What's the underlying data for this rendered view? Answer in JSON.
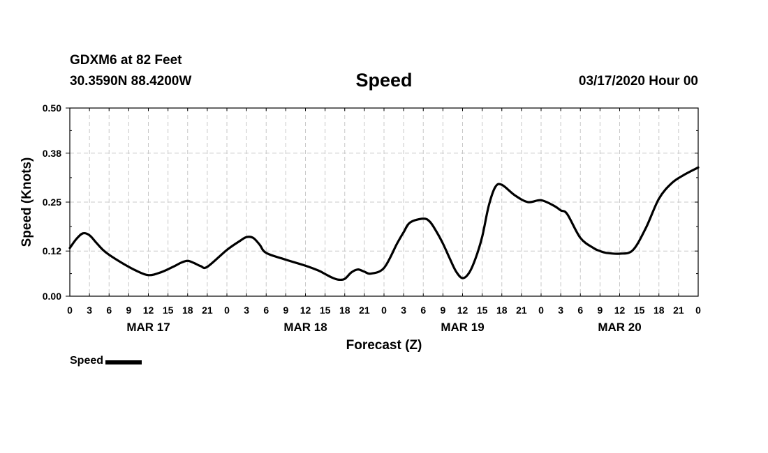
{
  "header": {
    "station": "GDXM6 at 82 Feet",
    "coords": "30.3590N 88.4200W",
    "title": "Speed",
    "datetime": "03/17/2020 Hour 00"
  },
  "chart_data": {
    "type": "line",
    "title": "Speed",
    "xlabel": "Forecast (Z)",
    "ylabel": "Speed (Knots)",
    "xlim": [
      0,
      96
    ],
    "ylim": [
      0,
      0.5
    ],
    "grid": true,
    "yticks": [
      0.0,
      0.12,
      0.25,
      0.38,
      0.5
    ],
    "ytick_labels": [
      "0.00",
      "0.12",
      "0.25",
      "0.38",
      "0.50"
    ],
    "xtick_labels": [
      "0",
      "3",
      "6",
      "9",
      "12",
      "15",
      "18",
      "21",
      "0",
      "3",
      "6",
      "9",
      "12",
      "15",
      "18",
      "21",
      "0",
      "3",
      "6",
      "9",
      "12",
      "15",
      "18",
      "21",
      "0",
      "3",
      "6",
      "9",
      "12",
      "15",
      "18",
      "21",
      "0"
    ],
    "date_labels": [
      {
        "label": "MAR 17",
        "hour": 12
      },
      {
        "label": "MAR 18",
        "hour": 36
      },
      {
        "label": "MAR 19",
        "hour": 60
      },
      {
        "label": "MAR 20",
        "hour": 84
      }
    ],
    "series": [
      {
        "name": "Speed",
        "color": "#000000",
        "x": [
          0,
          1,
          2,
          3,
          4,
          5,
          6,
          8,
          10,
          12,
          14,
          16,
          17,
          18,
          19,
          20,
          21,
          24,
          26,
          27,
          28,
          29,
          30,
          33,
          36,
          38,
          39,
          40,
          41,
          42,
          43,
          44,
          45,
          46,
          48,
          50,
          51,
          52,
          54,
          55,
          56,
          57,
          58,
          59,
          60,
          61,
          62,
          63,
          64,
          65,
          66,
          68,
          70,
          72,
          74,
          75,
          76,
          78,
          80,
          81,
          82,
          84,
          86,
          88,
          90,
          92,
          94,
          96
        ],
        "values": [
          0.128,
          0.152,
          0.167,
          0.162,
          0.143,
          0.124,
          0.11,
          0.088,
          0.069,
          0.056,
          0.064,
          0.08,
          0.089,
          0.094,
          0.088,
          0.08,
          0.078,
          0.123,
          0.147,
          0.157,
          0.155,
          0.137,
          0.115,
          0.097,
          0.081,
          0.068,
          0.059,
          0.05,
          0.044,
          0.046,
          0.063,
          0.071,
          0.065,
          0.06,
          0.075,
          0.14,
          0.17,
          0.196,
          0.206,
          0.198,
          0.172,
          0.14,
          0.102,
          0.066,
          0.048,
          0.062,
          0.101,
          0.158,
          0.24,
          0.29,
          0.296,
          0.268,
          0.25,
          0.255,
          0.24,
          0.228,
          0.218,
          0.155,
          0.128,
          0.12,
          0.115,
          0.113,
          0.122,
          0.181,
          0.259,
          0.301,
          0.324,
          0.342
        ]
      }
    ]
  },
  "legend": {
    "label": "Speed"
  }
}
